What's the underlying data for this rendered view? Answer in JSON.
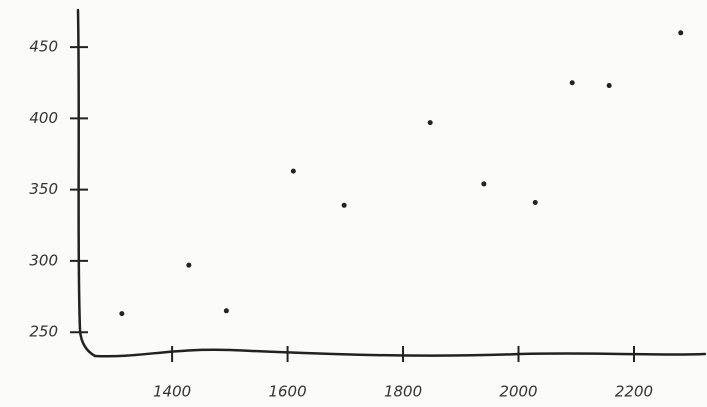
{
  "chart_data": {
    "type": "scatter",
    "x": [
      1313,
      1429,
      1494,
      1610,
      1698,
      1847,
      1940,
      2029,
      2093,
      2157,
      2281
    ],
    "values": [
      263,
      297,
      265,
      363,
      339,
      397,
      354,
      341,
      425,
      423,
      460
    ],
    "color": "#222222",
    "xlim": [
      1263,
      2323
    ],
    "xticks": [
      1400,
      1600,
      1800,
      2000,
      2200
    ],
    "ylim": [
      234,
      476
    ],
    "yticks": [
      250,
      300,
      350,
      400,
      450
    ],
    "grid": false
  }
}
